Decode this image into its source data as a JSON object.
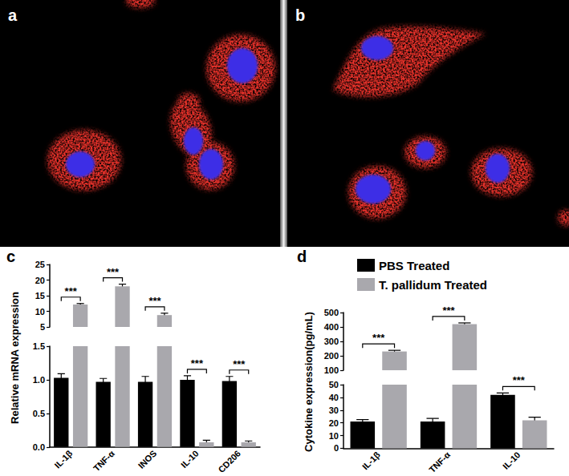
{
  "images": [
    {
      "title": "a"
    },
    {
      "title": "b"
    }
  ],
  "chart_data": [
    {
      "type": "bar",
      "title": "c",
      "y_label": "Relative mRNA expression",
      "categories": [
        "IL-1β",
        "TNF-α",
        "INOS",
        "IL-10",
        "CD206"
      ],
      "series": [
        {
          "color": "#000000",
          "values": [
            1.03,
            0.97,
            0.97,
            1.0,
            0.98
          ],
          "errors": [
            0.06,
            0.05,
            0.08,
            0.06,
            0.07
          ]
        },
        {
          "color": "#a9a8ad",
          "values": [
            12.2,
            18.0,
            8.8,
            0.07,
            0.07
          ],
          "errors": [
            0.3,
            0.7,
            0.6,
            0.03,
            0.02
          ]
        }
      ],
      "annotations": [
        "***",
        "***",
        "***",
        "***",
        "***"
      ],
      "ylim": [
        0,
        25
      ],
      "y_break": [
        1.5,
        5
      ],
      "yticks": [
        {
          "value": 0,
          "label": "0.0"
        },
        {
          "value": 0.5,
          "label": "0.5"
        },
        {
          "value": 1,
          "label": "1.0"
        },
        {
          "value": 1.5,
          "label": "1.5"
        },
        5,
        10,
        15,
        20,
        25
      ],
      "grid": false
    },
    {
      "type": "bar",
      "title": "d",
      "y_label": "Cytokine expression(pg/mL)",
      "categories": [
        "IL-1β",
        "TNF-α",
        "IL-10"
      ],
      "series": [
        {
          "name": "PBS Treated",
          "color": "#000000",
          "values": [
            21,
            21,
            42
          ],
          "errors": [
            1.5,
            2.5,
            1.5
          ]
        },
        {
          "name": "T. pallidum Treated",
          "color": "#a9a8ad",
          "values": [
            230,
            420,
            22
          ],
          "errors": [
            8,
            8,
            2.5
          ]
        }
      ],
      "annotations": [
        "***",
        "***",
        "***"
      ],
      "ylim": [
        0,
        500
      ],
      "y_break": [
        50,
        100
      ],
      "yticks": [
        0,
        10,
        20,
        30,
        40,
        50,
        100,
        200,
        300,
        400,
        500
      ],
      "grid": false,
      "legend": "upper right"
    }
  ]
}
